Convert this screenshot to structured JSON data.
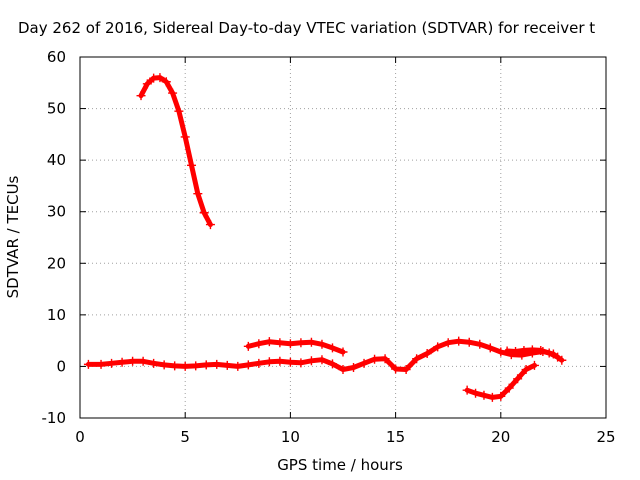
{
  "chart_data": {
    "type": "scatter",
    "title": "Day 262 of 2016, Sidereal Day-to-day VTEC variation (SDTVAR) for receiver t",
    "xlabel": "GPS time / hours",
    "ylabel": "SDTVAR / TECUs",
    "xlim": [
      0,
      25
    ],
    "ylim": [
      -10,
      60
    ],
    "xticks": [
      0,
      5,
      10,
      15,
      20,
      25
    ],
    "yticks": [
      -10,
      0,
      10,
      20,
      30,
      40,
      50,
      60
    ],
    "grid": true,
    "legend": "none",
    "marker": "plus",
    "color": "#ff0000",
    "series": [
      {
        "x": [
          2.9,
          3.2,
          3.5,
          3.8,
          4.1,
          4.4,
          4.7,
          5.0,
          5.3,
          5.6,
          5.9,
          6.2
        ],
        "y": [
          52.5,
          54.8,
          55.9,
          56.0,
          55.2,
          53.0,
          49.5,
          44.5,
          39.0,
          33.5,
          29.8,
          27.5
        ]
      },
      {
        "x": [
          0.4,
          1.0,
          1.5,
          2.0,
          2.5,
          3.0,
          3.5,
          4.0,
          4.5,
          5.0,
          5.5,
          6.0,
          6.5,
          7.0,
          7.5,
          8.0,
          8.5,
          9.0,
          9.5,
          10.0,
          10.5,
          11.0,
          11.5,
          12.0,
          12.5,
          13.0,
          13.5,
          14.0,
          14.5,
          15.0,
          15.5,
          16.0,
          16.5,
          17.0,
          17.5,
          18.0,
          18.5,
          19.0,
          19.5,
          20.0,
          20.5,
          21.0,
          21.5,
          22.0,
          22.5,
          22.9
        ],
        "y": [
          0.4,
          0.4,
          0.6,
          0.8,
          1.0,
          1.0,
          0.6,
          0.3,
          0.1,
          0.0,
          0.1,
          0.3,
          0.4,
          0.2,
          0.0,
          0.3,
          0.6,
          0.9,
          1.0,
          0.8,
          0.7,
          1.1,
          1.3,
          0.5,
          -0.6,
          -0.2,
          0.6,
          1.4,
          1.5,
          -0.5,
          -0.6,
          1.5,
          2.5,
          3.8,
          4.6,
          4.9,
          4.7,
          4.3,
          3.6,
          2.8,
          2.3,
          2.2,
          2.6,
          2.9,
          2.4,
          1.2
        ]
      },
      {
        "x": [
          8.0,
          8.5,
          9.0,
          9.5,
          10.0,
          10.5,
          11.0,
          11.5,
          12.0,
          12.5
        ],
        "y": [
          3.9,
          4.4,
          4.8,
          4.6,
          4.4,
          4.6,
          4.7,
          4.3,
          3.6,
          2.8
        ]
      },
      {
        "x": [
          20.3,
          20.7,
          21.1,
          21.5,
          21.9,
          22.3,
          22.7
        ],
        "y": [
          3.0,
          2.9,
          3.1,
          3.2,
          3.1,
          2.6,
          1.8
        ]
      },
      {
        "x": [
          18.4,
          18.8,
          19.2,
          19.6,
          20.0,
          20.4,
          20.8,
          21.2,
          21.6
        ],
        "y": [
          -4.6,
          -5.2,
          -5.6,
          -6.0,
          -5.8,
          -4.2,
          -2.4,
          -0.6,
          0.2
        ]
      }
    ]
  }
}
